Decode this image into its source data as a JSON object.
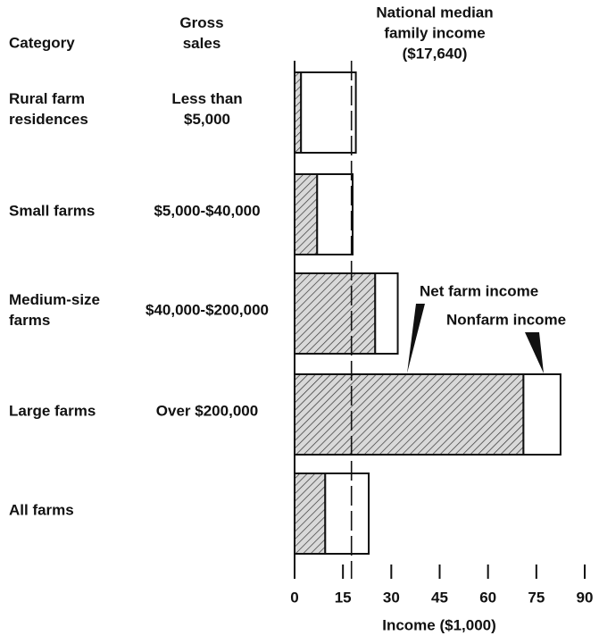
{
  "chart_data": {
    "type": "stacked_barh",
    "column_headers": {
      "category": "Category",
      "gross_sales": "Gross\nsales"
    },
    "categories": [
      "Rural farm\nresidences",
      "Small farms",
      "Medium-size\nfarms",
      "Large farms",
      "All farms"
    ],
    "gross_sales": [
      "Less than\n$5,000",
      "$5,000-$40,000",
      "$40,000-$200,000",
      "Over $200,000",
      null
    ],
    "series": [
      {
        "name": "Net farm income",
        "color": "#d9d9d9",
        "hatch": true,
        "values": [
          2,
          7,
          25,
          71,
          9.5
        ]
      },
      {
        "name": "Nonfarm income",
        "color": "#ffffff",
        "hatch": false,
        "values": [
          17,
          11,
          7,
          11.5,
          13.5
        ]
      }
    ],
    "reference_line": {
      "label": "National median\nfamily income ($17,640)",
      "value": 17.64
    },
    "xlabel": "Income ($1,000)",
    "xlim": [
      0,
      90
    ],
    "xticks": [
      0,
      15,
      30,
      45,
      60,
      75,
      90
    ]
  }
}
